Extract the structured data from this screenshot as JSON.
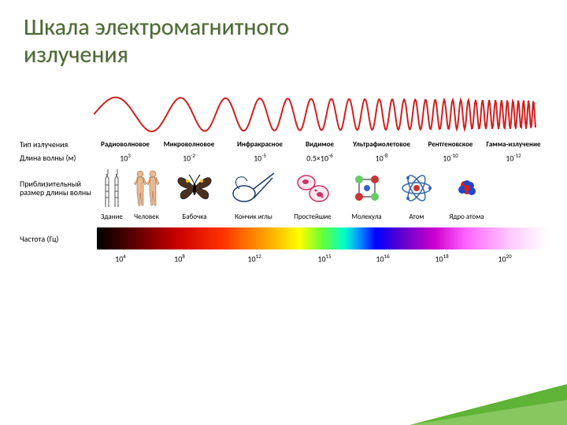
{
  "title_line1": "Шкала электромагнитного",
  "title_line2": "излучения",
  "labels": {
    "type": "Тип излучения",
    "wavelength": "Длина волны (м)",
    "approx": "Приблизительный размер длины волны",
    "freq": "Частота (Гц)"
  },
  "types": {
    "radio": "Радиоволновое",
    "micro": "Микроволновое",
    "ir": "Инфракрасное",
    "visible": "Видимое",
    "uv": "Ультрафиолетовое",
    "xray": "Рентгеновское",
    "gamma": "Гамма-излучение"
  },
  "wavelengths": {
    "radio": "10",
    "radio_exp": "3",
    "micro": "10",
    "micro_exp": "-2",
    "ir": "10",
    "ir_exp": "-5",
    "visible": "0.5×10",
    "visible_exp": "-6",
    "uv": "10",
    "uv_exp": "-8",
    "xray": "10",
    "xray_exp": "-10",
    "gamma": "10",
    "gamma_exp": "-12"
  },
  "sizes": {
    "building": "Здание",
    "human": "Человек",
    "butterfly": "Бабочка",
    "needle": "Кончик иглы",
    "protozoa": "Простейшие",
    "molecule": "Молекула",
    "atom": "Атом",
    "nucleus": "Ядро атома"
  },
  "freqs": {
    "f1": "10",
    "f1_exp": "4",
    "f2": "10",
    "f2_exp": "8",
    "f3": "10",
    "f3_exp": "12",
    "f4": "10",
    "f4_exp": "15",
    "f5": "10",
    "f5_exp": "16",
    "f6": "10",
    "f6_exp": "18",
    "f7": "10",
    "f7_exp": "20"
  },
  "colors": {
    "title": "#4e6a34",
    "wave": "#d02020"
  }
}
